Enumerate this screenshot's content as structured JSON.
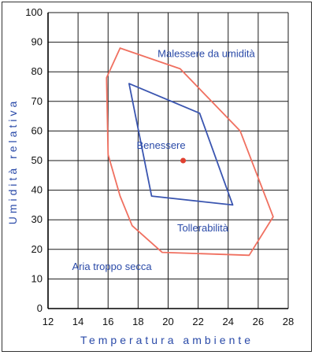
{
  "chart_data": {
    "type": "area",
    "xlabel": "Temperatura ambiente",
    "ylabel": "Umidità relativa",
    "xlim": [
      12,
      28
    ],
    "ylim": [
      0,
      100
    ],
    "x_ticks": [
      12,
      14,
      16,
      18,
      20,
      22,
      24,
      26,
      28
    ],
    "y_ticks": [
      0,
      10,
      20,
      30,
      40,
      50,
      60,
      70,
      80,
      90,
      100
    ],
    "grid": true,
    "colors": {
      "outer": "#f07060",
      "inner": "#3a55b0",
      "point": "#e04030",
      "text": "#2a4aa8"
    },
    "regions": [
      {
        "name": "Tollerabilità",
        "polygon": [
          [
            16.8,
            88
          ],
          [
            20.8,
            81
          ],
          [
            24.8,
            60
          ],
          [
            27.0,
            31
          ],
          [
            25.4,
            18
          ],
          [
            19.6,
            19
          ],
          [
            17.6,
            28
          ],
          [
            16.8,
            38
          ],
          [
            16.0,
            52
          ],
          [
            15.9,
            78
          ]
        ]
      },
      {
        "name": "Benessere",
        "polygon": [
          [
            17.4,
            76
          ],
          [
            22.1,
            66
          ],
          [
            24.3,
            35
          ],
          [
            18.9,
            38
          ]
        ]
      }
    ],
    "points": [
      {
        "x": 21.0,
        "y": 50.0
      }
    ],
    "annotations": [
      {
        "text": "Malessere da umidità",
        "x": 19.3,
        "y": 85
      },
      {
        "text": "Benessere",
        "x": 17.9,
        "y": 54
      },
      {
        "text": "Tollerabilità",
        "x": 20.6,
        "y": 26
      },
      {
        "text": "Aria troppo secca",
        "x": 13.6,
        "y": 13
      }
    ]
  }
}
